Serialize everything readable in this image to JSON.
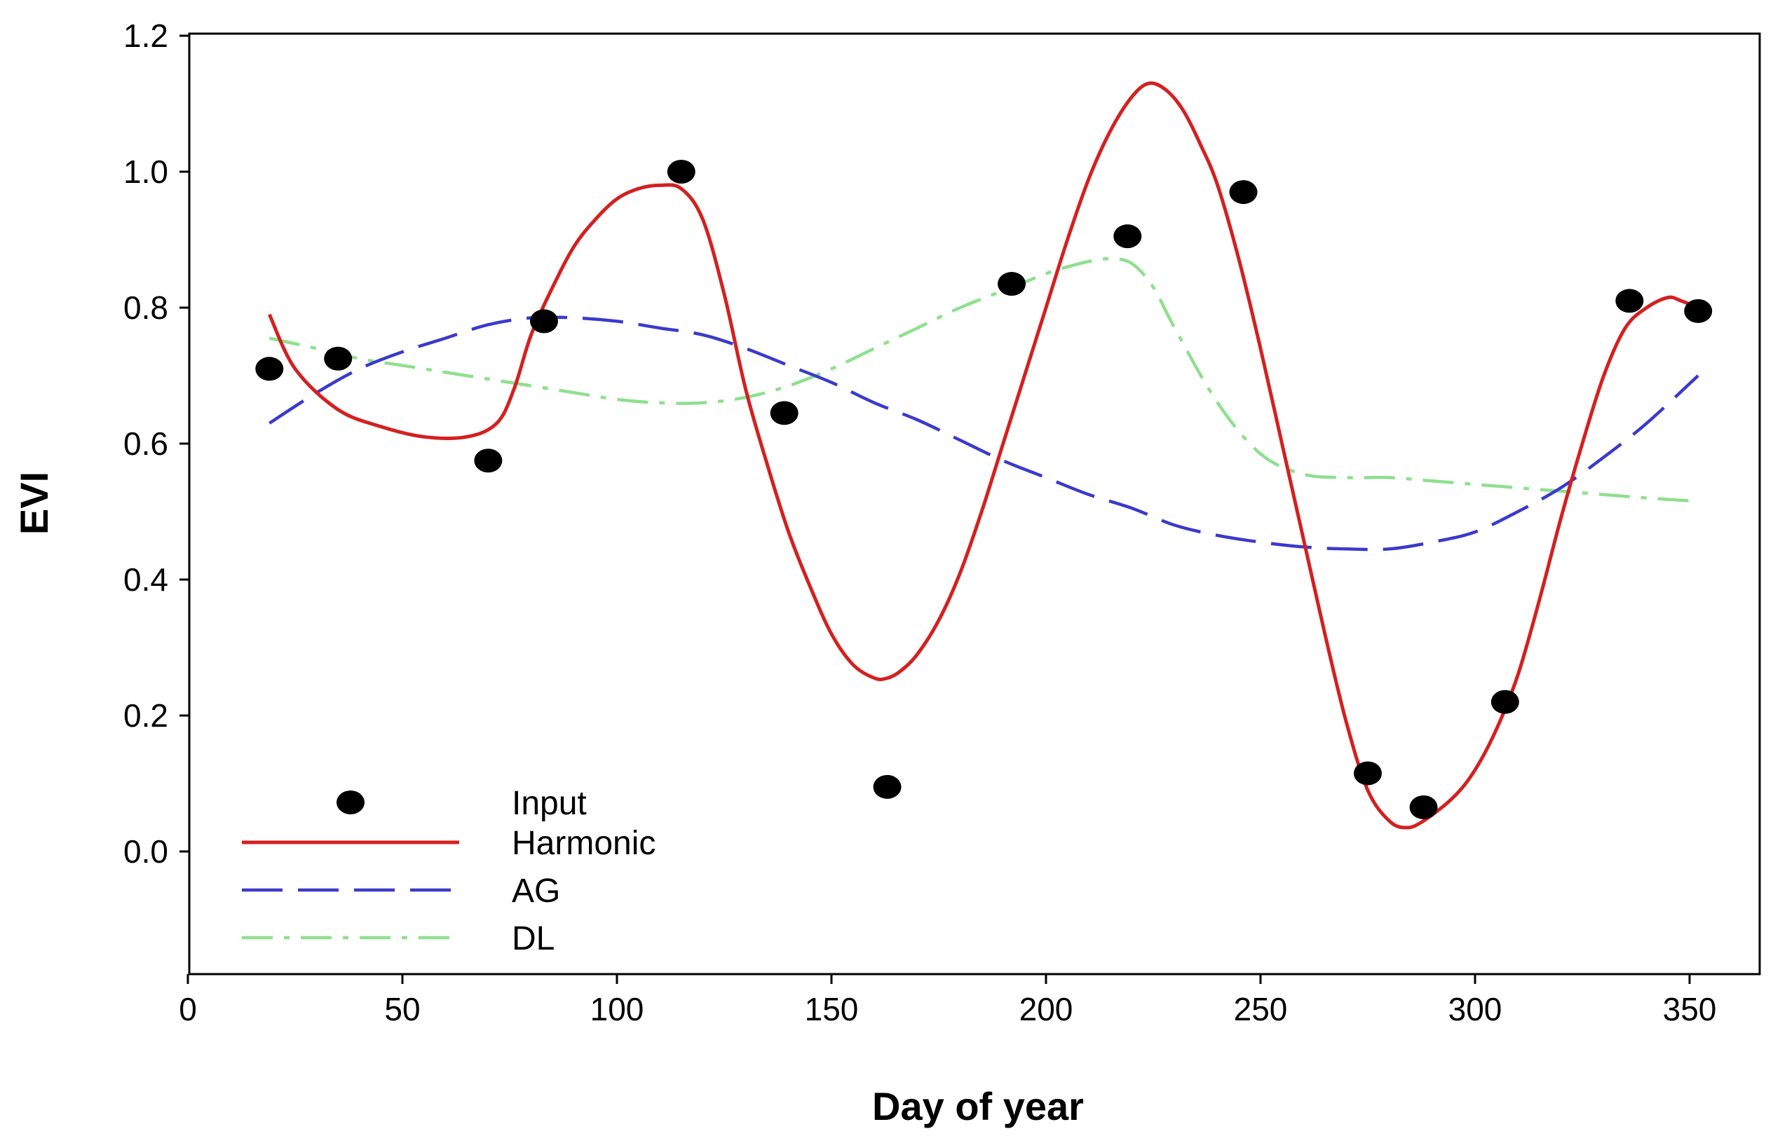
{
  "chart_data": {
    "type": "line",
    "title": "",
    "xlabel": "Day of year",
    "ylabel": "EVI",
    "xlim": [
      0,
      365
    ],
    "ylim": [
      -0.18,
      1.2
    ],
    "x_ticks": [
      0,
      50,
      100,
      150,
      200,
      250,
      300,
      350
    ],
    "x_tick_labels": [
      "0",
      "50",
      "100",
      "150",
      "200",
      "250",
      "300",
      "350"
    ],
    "y_ticks": [
      0.0,
      0.2,
      0.4,
      0.6,
      0.8,
      1.0,
      1.2
    ],
    "y_tick_labels": [
      "0.0",
      "0.2",
      "0.4",
      "0.6",
      "0.8",
      "1.0",
      "1.2"
    ],
    "grid": false,
    "legend_position": "bottom-left",
    "legend": [
      {
        "key": "input",
        "label": "Input",
        "style": "marker"
      },
      {
        "key": "harmonic",
        "label": "Harmonic",
        "style": "solid"
      },
      {
        "key": "ag",
        "label": "AG",
        "style": "dashed"
      },
      {
        "key": "dl",
        "label": "DL",
        "style": "dashdot"
      }
    ],
    "input_points": {
      "name": "Input",
      "color": "#000000",
      "x": [
        19,
        35,
        70,
        83,
        115,
        139,
        163,
        192,
        219,
        246,
        275,
        288,
        307,
        336,
        352
      ],
      "y": [
        0.71,
        0.725,
        0.575,
        0.78,
        1.0,
        0.645,
        0.095,
        0.835,
        0.905,
        0.97,
        0.115,
        0.065,
        0.22,
        0.81,
        0.795
      ]
    },
    "series": [
      {
        "name": "Harmonic",
        "color": "#d42020",
        "style": "solid",
        "x": [
          19,
          25,
          35,
          45,
          55,
          65,
          72,
          76,
          80,
          85,
          90,
          95,
          100,
          105,
          110,
          115,
          120,
          125,
          130,
          135,
          140,
          145,
          150,
          155,
          160,
          163,
          166,
          170,
          175,
          180,
          185,
          190,
          195,
          200,
          205,
          210,
          215,
          220,
          224,
          228,
          232,
          236,
          240,
          245,
          250,
          255,
          260,
          265,
          270,
          275,
          280,
          284,
          288,
          295,
          300,
          305,
          310,
          315,
          320,
          325,
          330,
          335,
          340,
          345,
          348,
          352
        ],
        "y": [
          0.79,
          0.71,
          0.65,
          0.625,
          0.61,
          0.61,
          0.63,
          0.68,
          0.76,
          0.83,
          0.89,
          0.93,
          0.96,
          0.975,
          0.98,
          0.975,
          0.93,
          0.82,
          0.68,
          0.57,
          0.47,
          0.39,
          0.32,
          0.275,
          0.255,
          0.255,
          0.265,
          0.29,
          0.34,
          0.41,
          0.5,
          0.6,
          0.7,
          0.8,
          0.9,
          0.99,
          1.06,
          1.11,
          1.13,
          1.12,
          1.09,
          1.04,
          0.98,
          0.87,
          0.74,
          0.6,
          0.46,
          0.32,
          0.19,
          0.09,
          0.045,
          0.035,
          0.045,
          0.08,
          0.12,
          0.18,
          0.26,
          0.37,
          0.49,
          0.6,
          0.7,
          0.77,
          0.8,
          0.815,
          0.81,
          0.8
        ]
      },
      {
        "name": "AG",
        "color": "#3a3acd",
        "style": "dashed",
        "x": [
          19,
          30,
          40,
          50,
          60,
          70,
          80,
          90,
          100,
          110,
          120,
          130,
          140,
          150,
          160,
          170,
          180,
          190,
          200,
          210,
          220,
          230,
          240,
          250,
          260,
          270,
          280,
          290,
          300,
          310,
          320,
          330,
          340,
          352
        ],
        "y": [
          0.63,
          0.675,
          0.71,
          0.735,
          0.755,
          0.775,
          0.785,
          0.785,
          0.78,
          0.77,
          0.76,
          0.74,
          0.715,
          0.69,
          0.66,
          0.635,
          0.605,
          0.575,
          0.55,
          0.525,
          0.505,
          0.48,
          0.465,
          0.455,
          0.448,
          0.445,
          0.445,
          0.455,
          0.47,
          0.5,
          0.535,
          0.58,
          0.63,
          0.7
        ]
      },
      {
        "name": "DL",
        "color": "#8ee08e",
        "style": "dashdot",
        "x": [
          19,
          30,
          40,
          50,
          60,
          70,
          80,
          90,
          100,
          110,
          120,
          130,
          140,
          150,
          160,
          170,
          180,
          190,
          200,
          205,
          210,
          215,
          220,
          225,
          230,
          240,
          250,
          260,
          270,
          280,
          290,
          300,
          310,
          320,
          330,
          340,
          352
        ],
        "y": [
          0.755,
          0.74,
          0.725,
          0.715,
          0.705,
          0.695,
          0.685,
          0.675,
          0.665,
          0.66,
          0.66,
          0.668,
          0.685,
          0.71,
          0.74,
          0.77,
          0.8,
          0.825,
          0.85,
          0.86,
          0.868,
          0.872,
          0.865,
          0.83,
          0.77,
          0.66,
          0.585,
          0.555,
          0.55,
          0.55,
          0.545,
          0.54,
          0.535,
          0.53,
          0.525,
          0.52,
          0.515
        ]
      }
    ]
  }
}
